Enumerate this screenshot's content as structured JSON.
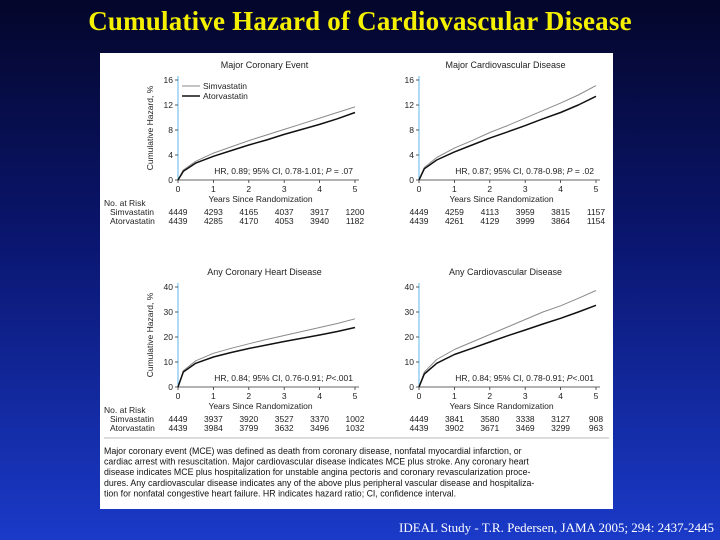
{
  "title": "Cumulative Hazard of Cardiovascular Disease",
  "citation": "IDEAL Study - T.R. Pedersen, JAMA 2005; 294: 2437-2445",
  "footnote": [
    "Major coronary event (MCE) was defined as death from coronary disease, nonfatal myocardial infarction, or",
    "cardiac arrest with resuscitation. Major cardiovascular disease indicates MCE plus stroke. Any coronary heart",
    "disease indicates MCE plus hospitalization for unstable angina pectoris and coronary revascularization proce-",
    "dures. Any cardiovascular disease indicates any of the above plus peripheral vascular disease and hospitaliza-",
    "tion for nonfatal congestive heart failure. HR indicates hazard ratio; CI, confidence interval."
  ],
  "colors": {
    "background_top": "#04062a",
    "background_bottom": "#1a3ac8",
    "title": "#f5f000",
    "axis": "#5bb8e8",
    "simvastatin": "#8a8a8a",
    "atorvastatin": "#111111"
  },
  "chart_data": [
    {
      "type": "line",
      "title": "Major Coronary Event",
      "xlabel": "Years Since Randomization",
      "ylabel": "Cumulative Hazard, %",
      "xlim": [
        0,
        5
      ],
      "ylim": [
        0,
        16
      ],
      "xticks": [
        "0",
        "1",
        "2",
        "3",
        "4",
        "5"
      ],
      "yticks": [
        0,
        4,
        8,
        12,
        16
      ],
      "ytick_labels": [
        "0",
        "4",
        "8",
        "12",
        "16"
      ],
      "legend": [
        "Simvastatin",
        "Atorvastatin"
      ],
      "hr_text": "HR, 0.89; 95% CI, 0.78-1.01; ",
      "p_label": "P",
      "p_value": " = .07",
      "x": [
        0,
        0.15,
        0.5,
        1,
        1.5,
        2,
        2.5,
        3,
        3.5,
        4,
        4.5,
        5
      ],
      "series": [
        {
          "name": "Simvastatin",
          "values": [
            0,
            1.6,
            3.0,
            4.3,
            5.3,
            6.3,
            7.2,
            8.1,
            9.0,
            9.9,
            10.8,
            11.7
          ]
        },
        {
          "name": "Atorvastatin",
          "values": [
            0,
            1.4,
            2.7,
            3.8,
            4.7,
            5.6,
            6.4,
            7.3,
            8.1,
            8.9,
            9.8,
            10.8
          ]
        }
      ],
      "risk": {
        "heading": "No. at Risk",
        "rows": [
          {
            "label": "Simvastatin",
            "values": [
              "4449",
              "4293",
              "4165",
              "4037",
              "3917",
              "1200"
            ]
          },
          {
            "label": "Atorvastatin",
            "values": [
              "4439",
              "4285",
              "4170",
              "4053",
              "3940",
              "1182"
            ]
          }
        ]
      }
    },
    {
      "type": "line",
      "title": "Major Cardiovascular Disease",
      "xlabel": "Years Since Randomization",
      "ylabel": "",
      "xlim": [
        0,
        5
      ],
      "ylim": [
        0,
        16
      ],
      "xticks": [
        "0",
        "1",
        "2",
        "3",
        "4",
        "5"
      ],
      "yticks": [
        0,
        4,
        8,
        12,
        16
      ],
      "ytick_labels": [
        "0",
        "4",
        "8",
        "12",
        "16"
      ],
      "legend": [],
      "hr_text": "HR, 0.87; 95% CI, 0.78-0.98; ",
      "p_label": "P",
      "p_value": " = .02",
      "x": [
        0,
        0.15,
        0.5,
        1,
        1.5,
        2,
        2.5,
        3,
        3.5,
        4,
        4.5,
        5
      ],
      "series": [
        {
          "name": "Simvastatin",
          "values": [
            0,
            2.0,
            3.6,
            5.1,
            6.3,
            7.6,
            8.7,
            9.9,
            11.1,
            12.3,
            13.6,
            15.1
          ]
        },
        {
          "name": "Atorvastatin",
          "values": [
            0,
            1.8,
            3.2,
            4.5,
            5.6,
            6.7,
            7.7,
            8.7,
            9.8,
            10.8,
            12.0,
            13.4
          ]
        }
      ],
      "risk": {
        "heading": "",
        "rows": [
          {
            "label": "",
            "values": [
              "4449",
              "4259",
              "4113",
              "3959",
              "3815",
              "1157"
            ]
          },
          {
            "label": "",
            "values": [
              "4439",
              "4261",
              "4129",
              "3999",
              "3864",
              "1154"
            ]
          }
        ]
      }
    },
    {
      "type": "line",
      "title": "Any Coronary Heart Disease",
      "xlabel": "Years Since Randomization",
      "ylabel": "Cumulative Hazard, %",
      "xlim": [
        0,
        5
      ],
      "ylim": [
        0,
        40
      ],
      "xticks": [
        "0",
        "1",
        "2",
        "3",
        "4",
        "5"
      ],
      "yticks": [
        0,
        10,
        20,
        30,
        40
      ],
      "ytick_labels": [
        "0",
        "10",
        "20",
        "30",
        "40"
      ],
      "legend": [],
      "hr_text": "HR, 0.84; 95% CI, 0.76-0.91; ",
      "p_label": "P",
      "p_value": "<.001",
      "x": [
        0,
        0.15,
        0.5,
        1,
        1.5,
        2,
        2.5,
        3,
        3.5,
        4,
        4.5,
        5
      ],
      "series": [
        {
          "name": "Simvastatin",
          "values": [
            0,
            6.5,
            10.5,
            13.5,
            15.5,
            17.3,
            19.0,
            20.6,
            22.2,
            23.8,
            25.4,
            27.3
          ]
        },
        {
          "name": "Atorvastatin",
          "values": [
            0,
            6.0,
            9.5,
            12.0,
            13.8,
            15.4,
            16.8,
            18.2,
            19.5,
            20.8,
            22.2,
            23.8
          ]
        }
      ],
      "risk": {
        "heading": "No. at Risk",
        "rows": [
          {
            "label": "Simvastatin",
            "values": [
              "4449",
              "3937",
              "3920",
              "3527",
              "3370",
              "1002"
            ]
          },
          {
            "label": "Atorvastatin",
            "values": [
              "4439",
              "3984",
              "3799",
              "3632",
              "3496",
              "1032"
            ]
          }
        ]
      }
    },
    {
      "type": "line",
      "title": "Any Cardiovascular Disease",
      "xlabel": "Years Since Randomization",
      "ylabel": "",
      "xlim": [
        0,
        5
      ],
      "ylim": [
        0,
        40
      ],
      "xticks": [
        "0",
        "1",
        "2",
        "3",
        "4",
        "5"
      ],
      "yticks": [
        0,
        10,
        20,
        30,
        40
      ],
      "ytick_labels": [
        "0",
        "10",
        "20",
        "30",
        "40"
      ],
      "legend": [],
      "hr_text": "HR, 0.84; 95% CI, 0.78-0.91; ",
      "p_label": "P",
      "p_value": "<.001",
      "x": [
        0,
        0.15,
        0.5,
        1,
        1.5,
        2,
        2.5,
        3,
        3.5,
        4,
        4.5,
        5
      ],
      "series": [
        {
          "name": "Simvastatin",
          "values": [
            0,
            6.0,
            11.0,
            15.0,
            18.0,
            21.0,
            24.0,
            27.0,
            30.0,
            32.5,
            35.5,
            38.6
          ]
        },
        {
          "name": "Atorvastatin",
          "values": [
            0,
            5.2,
            9.5,
            13.0,
            15.5,
            18.0,
            20.5,
            22.8,
            25.2,
            27.5,
            30.0,
            32.7
          ]
        }
      ],
      "risk": {
        "heading": "",
        "rows": [
          {
            "label": "",
            "values": [
              "4449",
              "3841",
              "3580",
              "3338",
              "3127",
              "908"
            ]
          },
          {
            "label": "",
            "values": [
              "4439",
              "3902",
              "3671",
              "3469",
              "3299",
              "963"
            ]
          }
        ]
      }
    }
  ]
}
